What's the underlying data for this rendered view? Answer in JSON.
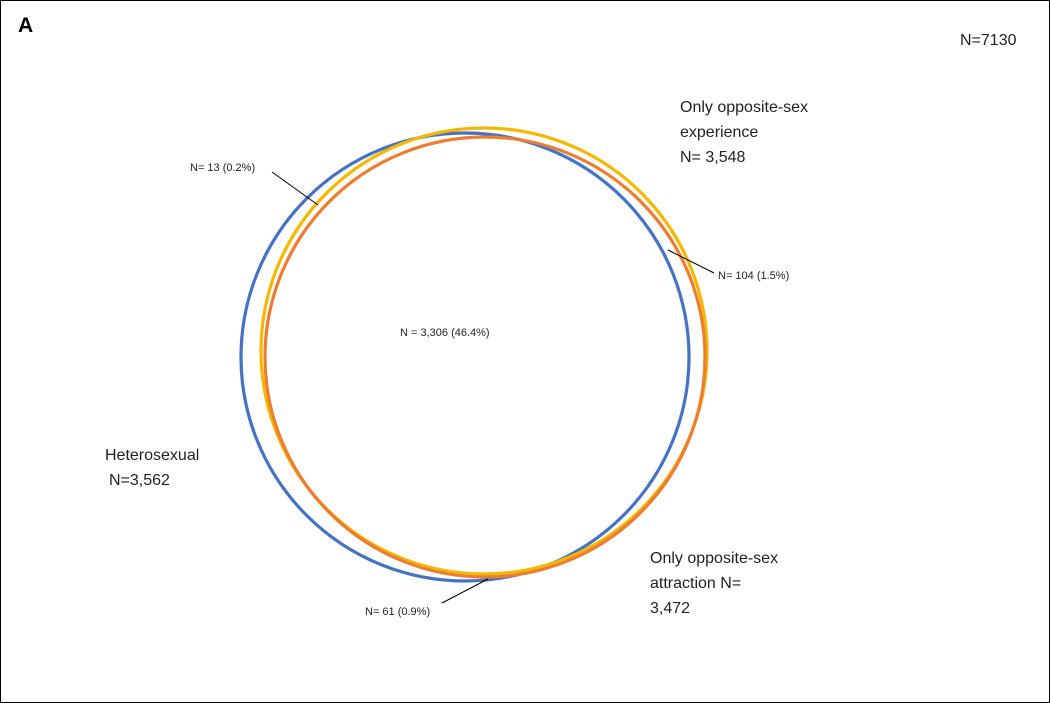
{
  "panel_label": "A",
  "total": "N=7130",
  "sets": {
    "experience": {
      "line1": "Only opposite-sex",
      "line2": "experience",
      "line3": "N= 3,548",
      "color": "#F5B800"
    },
    "heterosexual": {
      "line1": "Heterosexual",
      "line2": "N=3,562",
      "color": "#4472C4"
    },
    "attraction": {
      "line1": "Only opposite-sex",
      "line2": "attraction N=",
      "line3": "3,472",
      "color": "#ED7D31"
    }
  },
  "regions": {
    "het_only": "N= 13 (0.2%)",
    "exp_att": "N= 104 (1.5%)",
    "all_three": "N = 3,306 (46.4%)",
    "het_att": "N= 61 (0.9%)"
  }
}
